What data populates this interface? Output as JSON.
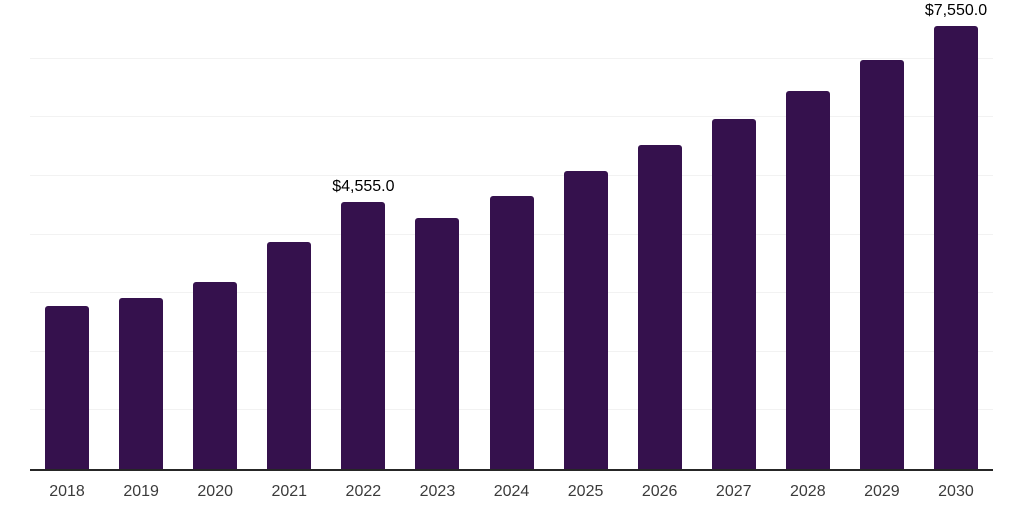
{
  "chart_data": {
    "type": "bar",
    "title": "",
    "xlabel": "",
    "ylabel": "",
    "categories": [
      "2018",
      "2019",
      "2020",
      "2021",
      "2022",
      "2023",
      "2024",
      "2025",
      "2026",
      "2027",
      "2028",
      "2029",
      "2030"
    ],
    "values": [
      2780,
      2920,
      3190,
      3880,
      4555,
      4290,
      4655,
      5090,
      5520,
      5975,
      6450,
      6985,
      7550
    ],
    "data_labels": [
      {
        "category": "2022",
        "text": "$4,555.0"
      },
      {
        "category": "2030",
        "text": "$7,550.0"
      }
    ],
    "ylim": [
      0,
      8000
    ],
    "gridline_interval": 1000,
    "grid": "horizontal",
    "legend": "none",
    "bar_color": "#35114d",
    "gridline_color": "#f2f2f2",
    "axis_line_color": "#262626",
    "data_label_color": "#000000",
    "tick_label_color": "#3b3b3b",
    "background_color": "#ffffff"
  }
}
